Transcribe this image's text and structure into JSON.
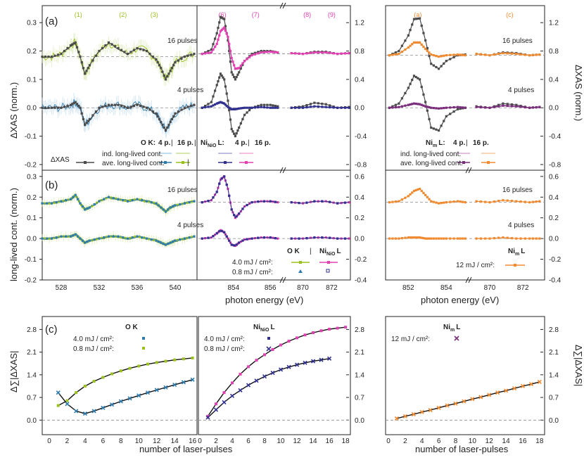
{
  "colors": {
    "gray": "#4a4a4a",
    "ok4": "#2e7bb0",
    "ok16": "#9ac01e",
    "ni4": "#303090",
    "ni16": "#e040b0",
    "nim": "#f08a30",
    "nim_dark": "#7a2d7a",
    "okband": "#c8e090",
    "ok4band": "#a8d0ec",
    "niband": "#f2aadc"
  },
  "panel_labels": {
    "a": "(a)",
    "b": "(b)",
    "c": "(c)"
  },
  "peaks_a": [
    "(1)",
    "(2)",
    "(3)",
    "(6)",
    "(7)",
    "(8)",
    "(9)"
  ],
  "peaks_a_right": [
    "(a)",
    "(c)"
  ],
  "axes": {
    "xas_label": "ΔXAS (norm.)",
    "longlived_label": "long-lived cont. (norm.)",
    "energy_label": "photon energy (eV)",
    "pulses_label": "number of laser-pulses",
    "sum_label": "Δ∑|ΔXAS|",
    "a_left_ticks": [
      "0.3",
      "0.2",
      "0.1",
      "0.0",
      "-0.1",
      "-0.2"
    ],
    "a_right_ticks": [
      "1.2",
      "0.8",
      "0.4",
      "0.0",
      "-0.4",
      "-0.8"
    ],
    "b_left_ticks": [
      "0.3",
      "0.2",
      "0.1",
      "0.0",
      "-0.1",
      "-0.2"
    ],
    "b_right_ticks": [
      "0.6",
      "0.4",
      "0.2",
      "0.0",
      "-0.2",
      "-0.4"
    ],
    "x_ok_ticks": [
      "528",
      "532",
      "536",
      "540"
    ],
    "x_ni_ticks": [
      "854",
      "856"
    ],
    "x_ni_hi_ticks": [
      "870",
      "872"
    ],
    "x_nim_ticks": [
      "852",
      "854"
    ],
    "x_nim_hi_ticks": [
      "870",
      "872"
    ],
    "c_ticks": [
      "2.8",
      "2.1",
      "1.4",
      "0.7",
      "0.0"
    ],
    "c_x_ticks": [
      "0",
      "2",
      "4",
      "6",
      "8",
      "10",
      "12",
      "14",
      "16",
      "18"
    ]
  },
  "labels": {
    "pulses16": "16 pulses",
    "pulses4": "4 pulses",
    "dxas": "ΔXAS",
    "ok_legend": "O K:",
    "p4": "4 p.",
    "p16": "16 p.",
    "sep": "|",
    "ni_pre": "Ni",
    "ni_sub": "NiO",
    "l_suffix": "L:",
    "l_plain": "L",
    "m_sub": "m",
    "ind": "ind. long-lived cont.",
    "ave": "ave. long-lived cont.",
    "ok_plain": "O K",
    "f40": "4.0 mJ / cm²:",
    "f08": "0.8 mJ / cm²:",
    "f12": "12 mJ / cm²:"
  },
  "chart_data": [
    {
      "type": "line",
      "panel": "(a)",
      "xlabel": "photon energy (eV)",
      "ylabel": "ΔXAS (norm.)",
      "ylim_ok": [
        -0.22,
        0.36
      ],
      "ylim_ni": [
        -0.88,
        1.44
      ],
      "series": [
        {
          "name": "O K 16 p.",
          "offset": 0.18,
          "x": [
            526,
            527,
            528,
            529,
            529.5,
            530,
            530.5,
            531,
            532,
            533,
            534,
            535,
            536,
            537,
            538,
            538.5,
            539,
            539.5,
            540,
            541,
            542
          ],
          "y": [
            0.18,
            0.18,
            0.19,
            0.22,
            0.23,
            0.18,
            0.12,
            0.15,
            0.2,
            0.23,
            0.21,
            0.19,
            0.21,
            0.2,
            0.17,
            0.14,
            0.1,
            0.13,
            0.16,
            0.18,
            0.19
          ]
        },
        {
          "name": "O K 4 p.",
          "offset": 0.0,
          "x": [
            526,
            527,
            528,
            529,
            529.5,
            530,
            530.5,
            531,
            532,
            533,
            534,
            535,
            536,
            537,
            538,
            538.5,
            539,
            539.5,
            540,
            541,
            542
          ],
          "y": [
            0.0,
            0.0,
            0.0,
            0.01,
            0.02,
            0.0,
            -0.06,
            -0.04,
            0.0,
            0.01,
            0.01,
            0.0,
            0.01,
            0.0,
            -0.02,
            -0.05,
            -0.08,
            -0.05,
            -0.02,
            0.0,
            0.01
          ]
        },
        {
          "name": "NiNiO L 16 p.",
          "offset": 0.76,
          "x": [
            852.3,
            852.8,
            853.1,
            853.3,
            853.5,
            853.7,
            853.9,
            854.1,
            854.3,
            854.6,
            855,
            855.5,
            856,
            856.4,
            869.2,
            870,
            870.8,
            871.6,
            872.4,
            873.2
          ],
          "y": [
            0.76,
            0.78,
            0.9,
            1.08,
            1.13,
            1.0,
            0.7,
            0.55,
            0.56,
            0.66,
            0.74,
            0.78,
            0.79,
            0.78,
            0.77,
            0.76,
            0.78,
            0.78,
            0.76,
            0.77
          ]
        },
        {
          "name": "NiNiO L 4 p.",
          "offset": 0.0,
          "x": [
            852.3,
            852.8,
            853.1,
            853.3,
            853.5,
            853.7,
            853.9,
            854.1,
            854.3,
            854.6,
            855,
            855.5,
            856,
            856.4,
            869.2,
            870,
            870.8,
            871.6,
            872.4,
            873.2
          ],
          "y": [
            0.0,
            0.02,
            0.06,
            0.08,
            0.06,
            0.01,
            -0.02,
            -0.02,
            -0.01,
            0.0,
            0.0,
            0.01,
            0.0,
            0.0,
            0.0,
            0.0,
            0.02,
            0.01,
            0.0,
            0.0
          ]
        },
        {
          "name": "NiNiO L 16 p. (gray)",
          "offset": 0.76,
          "x": [
            852.3,
            852.8,
            853.1,
            853.3,
            853.5,
            853.7,
            853.9,
            854.1,
            854.3,
            854.6,
            855,
            855.5,
            856,
            856.4,
            869.2,
            870,
            870.8,
            871.6,
            872.4,
            873.2
          ],
          "y": [
            0.76,
            0.82,
            1.05,
            1.28,
            1.25,
            0.95,
            0.5,
            0.4,
            0.5,
            0.66,
            0.76,
            0.8,
            0.8,
            0.78,
            0.77,
            0.76,
            0.79,
            0.79,
            0.76,
            0.77
          ]
        },
        {
          "name": "NiNiO L 4 p. (gray)",
          "offset": 0.0,
          "x": [
            852.3,
            852.8,
            853.1,
            853.3,
            853.5,
            853.7,
            853.9,
            854.1,
            854.3,
            854.6,
            855,
            855.5,
            856,
            856.4,
            869.2,
            870,
            870.8,
            871.6,
            872.4,
            873.2
          ],
          "y": [
            0.0,
            0.08,
            0.32,
            0.48,
            0.4,
            0.1,
            -0.3,
            -0.4,
            -0.28,
            -0.1,
            0.0,
            0.04,
            0.04,
            0.02,
            0.0,
            0.02,
            0.07,
            0.05,
            0.0,
            0.01
          ]
        },
        {
          "name": "Nim L 16 p.",
          "offset": 0.74,
          "x": [
            851,
            851.5,
            852,
            852.3,
            852.6,
            852.9,
            853.2,
            853.6,
            854,
            854.6,
            855,
            869.2,
            870,
            870.8,
            871.6,
            872.4,
            873
          ],
          "y": [
            0.74,
            0.76,
            0.85,
            0.92,
            0.92,
            0.83,
            0.75,
            0.72,
            0.74,
            0.75,
            0.74,
            0.76,
            0.74,
            0.77,
            0.76,
            0.74,
            0.75
          ]
        },
        {
          "name": "Nim L 4 p.",
          "offset": 0.0,
          "x": [
            851,
            851.5,
            852,
            852.3,
            852.6,
            852.9,
            853.2,
            853.6,
            854,
            854.6,
            855,
            869.2,
            870,
            870.8,
            871.6,
            872.4,
            873
          ],
          "y": [
            0.0,
            0.01,
            0.04,
            0.06,
            0.05,
            0.02,
            0.0,
            -0.01,
            0.0,
            0.01,
            0.0,
            0.01,
            0.0,
            0.03,
            0.02,
            0.0,
            0.01
          ]
        },
        {
          "name": "Nim L 16 p. (gray)",
          "offset": 0.74,
          "x": [
            851,
            851.5,
            852,
            852.3,
            852.6,
            852.9,
            853.2,
            853.6,
            854,
            854.6,
            855,
            869.2,
            870,
            870.8,
            871.6,
            872.4,
            873
          ],
          "y": [
            0.74,
            0.8,
            1.02,
            1.25,
            1.26,
            0.95,
            0.62,
            0.55,
            0.66,
            0.74,
            0.75,
            0.76,
            0.74,
            0.78,
            0.77,
            0.74,
            0.75
          ]
        },
        {
          "name": "Nim L 4 p. (gray)",
          "offset": 0.0,
          "x": [
            851,
            851.5,
            852,
            852.3,
            852.6,
            852.9,
            853.2,
            853.6,
            854,
            854.6,
            855,
            869.2,
            870,
            870.8,
            871.6,
            872.4,
            873
          ],
          "y": [
            0.0,
            0.06,
            0.28,
            0.45,
            0.4,
            0.08,
            -0.28,
            -0.32,
            -0.12,
            -0.02,
            0.0,
            0.02,
            0.0,
            0.06,
            0.04,
            0.0,
            0.01
          ]
        }
      ]
    },
    {
      "type": "scatter",
      "panel": "(b)",
      "xlabel": "photon energy (eV)",
      "ylabel": "long-lived cont. (norm.)",
      "ylim_ok": [
        -0.2,
        0.33
      ],
      "ylim_ni": [
        -0.4,
        0.66
      ],
      "series": [
        {
          "name": "O K 4.0 mJ / cm²",
          "offset": 0.17,
          "x": [
            526,
            527,
            528,
            529,
            529.5,
            530,
            530.5,
            531,
            532,
            533,
            534,
            535,
            536,
            537,
            538,
            538.5,
            539,
            539.5,
            540,
            541,
            542
          ],
          "y": [
            0.17,
            0.17,
            0.18,
            0.19,
            0.21,
            0.17,
            0.14,
            0.15,
            0.18,
            0.2,
            0.19,
            0.18,
            0.19,
            0.18,
            0.17,
            0.15,
            0.13,
            0.15,
            0.16,
            0.17,
            0.18
          ]
        },
        {
          "name": "O K 0.8 mJ / cm²",
          "offset": 0.0,
          "x": [
            526,
            527,
            528,
            529,
            529.5,
            530,
            530.5,
            531,
            532,
            533,
            534,
            535,
            536,
            537,
            538,
            538.5,
            539,
            539.5,
            540,
            541,
            542
          ],
          "y": [
            0.0,
            0.0,
            0.01,
            0.01,
            0.02,
            0.0,
            -0.02,
            -0.01,
            0.0,
            0.01,
            0.01,
            0.0,
            0.01,
            0.0,
            -0.01,
            -0.02,
            -0.03,
            -0.02,
            -0.01,
            0.0,
            0.01
          ]
        },
        {
          "name": "NiNiO L 4.0 mJ / cm²",
          "offset": 0.35,
          "x": [
            852.3,
            852.8,
            853.1,
            853.3,
            853.5,
            853.7,
            853.9,
            854.1,
            854.3,
            854.6,
            855,
            855.5,
            856,
            856.4,
            869.2,
            870,
            870.8,
            871.6,
            872.4,
            873.2
          ],
          "y": [
            0.35,
            0.37,
            0.45,
            0.57,
            0.6,
            0.48,
            0.28,
            0.2,
            0.24,
            0.31,
            0.35,
            0.36,
            0.36,
            0.35,
            0.35,
            0.34,
            0.36,
            0.36,
            0.34,
            0.35
          ]
        },
        {
          "name": "NiNiO L 0.8 mJ / cm²",
          "offset": 0.0,
          "x": [
            852.3,
            852.8,
            853.1,
            853.3,
            853.5,
            853.7,
            853.9,
            854.1,
            854.3,
            854.6,
            855,
            855.5,
            856,
            856.4,
            869.2,
            870,
            870.8,
            871.6,
            872.4,
            873.2
          ],
          "y": [
            0.0,
            0.01,
            0.05,
            0.08,
            0.06,
            0.0,
            -0.06,
            -0.07,
            -0.04,
            -0.01,
            0.0,
            0.01,
            0.01,
            0.0,
            0.0,
            0.0,
            0.01,
            0.01,
            0.0,
            0.0
          ]
        },
        {
          "name": "Nim L 12 mJ / cm²",
          "offset": 0.35,
          "x": [
            851,
            851.5,
            852,
            852.3,
            852.6,
            852.9,
            853.2,
            853.6,
            854,
            854.6,
            855,
            869.2,
            870,
            870.8,
            871.6,
            872.4,
            873
          ],
          "y": [
            0.35,
            0.36,
            0.41,
            0.46,
            0.48,
            0.42,
            0.36,
            0.34,
            0.35,
            0.36,
            0.35,
            0.36,
            0.35,
            0.37,
            0.36,
            0.35,
            0.36
          ]
        },
        {
          "name": "Nim L 12 mJ / cm² (4 p.)",
          "offset": 0.0,
          "x": [
            851,
            851.5,
            852,
            852.3,
            852.6,
            852.9,
            853.2,
            853.6,
            854,
            854.6,
            855,
            869.2,
            870,
            870.8,
            871.6,
            872.4,
            873
          ],
          "y": [
            0.0,
            0.0,
            0.01,
            0.01,
            0.01,
            0.0,
            0.0,
            0.0,
            0.0,
            0.0,
            0.0,
            0.0,
            0.0,
            0.01,
            0.0,
            0.0,
            0.0
          ]
        }
      ]
    },
    {
      "type": "scatter",
      "panel": "(c)",
      "xlabel": "number of laser-pulses",
      "ylabel": "Δ∑|ΔXAS|",
      "ylim": [
        -0.45,
        3.2
      ],
      "series": [
        {
          "name": "O K 4.0 mJ / cm²",
          "x": [
            1,
            2,
            3,
            4,
            5,
            6,
            7,
            8,
            9,
            10,
            11,
            12,
            13,
            14,
            15,
            16
          ],
          "y": [
            0.45,
            0.6,
            0.85,
            1.05,
            1.2,
            1.32,
            1.43,
            1.52,
            1.6,
            1.67,
            1.73,
            1.78,
            1.82,
            1.86,
            1.89,
            1.92
          ]
        },
        {
          "name": "O K 0.8 mJ / cm²",
          "x": [
            1,
            2,
            3,
            4,
            5,
            6,
            7,
            8,
            9,
            10,
            11,
            12,
            13,
            14,
            15,
            16
          ],
          "y": [
            0.85,
            0.5,
            0.28,
            0.2,
            0.28,
            0.38,
            0.48,
            0.58,
            0.67,
            0.76,
            0.85,
            0.93,
            1.01,
            1.09,
            1.17,
            1.25
          ]
        },
        {
          "name": "NiNiO L 4.0 mJ / cm²",
          "x": [
            1,
            2,
            3,
            4,
            5,
            6,
            7,
            8,
            9,
            10,
            11,
            12,
            13,
            14,
            15,
            16,
            17,
            18
          ],
          "y": [
            0.12,
            0.5,
            0.85,
            1.15,
            1.42,
            1.65,
            1.85,
            2.02,
            2.18,
            2.32,
            2.44,
            2.54,
            2.63,
            2.7,
            2.76,
            2.81,
            2.84,
            2.87
          ]
        },
        {
          "name": "NiNiO L 0.8 mJ / cm²",
          "x": [
            1,
            2,
            3,
            4,
            5,
            6,
            7,
            8,
            9,
            10,
            11,
            12,
            13,
            14,
            15,
            16
          ],
          "y": [
            0.08,
            0.32,
            0.55,
            0.75,
            0.92,
            1.08,
            1.22,
            1.35,
            1.46,
            1.56,
            1.64,
            1.71,
            1.77,
            1.82,
            1.86,
            1.9
          ]
        },
        {
          "name": "Nim L 12 mJ / cm²",
          "x": [
            1,
            2,
            3,
            4,
            5,
            6,
            7,
            8,
            9,
            10,
            11,
            12,
            13,
            14,
            15,
            16,
            17,
            18
          ],
          "y": [
            0.05,
            0.12,
            0.18,
            0.25,
            0.31,
            0.38,
            0.45,
            0.51,
            0.58,
            0.65,
            0.71,
            0.78,
            0.85,
            0.91,
            0.98,
            1.05,
            1.11,
            1.18
          ]
        }
      ]
    }
  ]
}
